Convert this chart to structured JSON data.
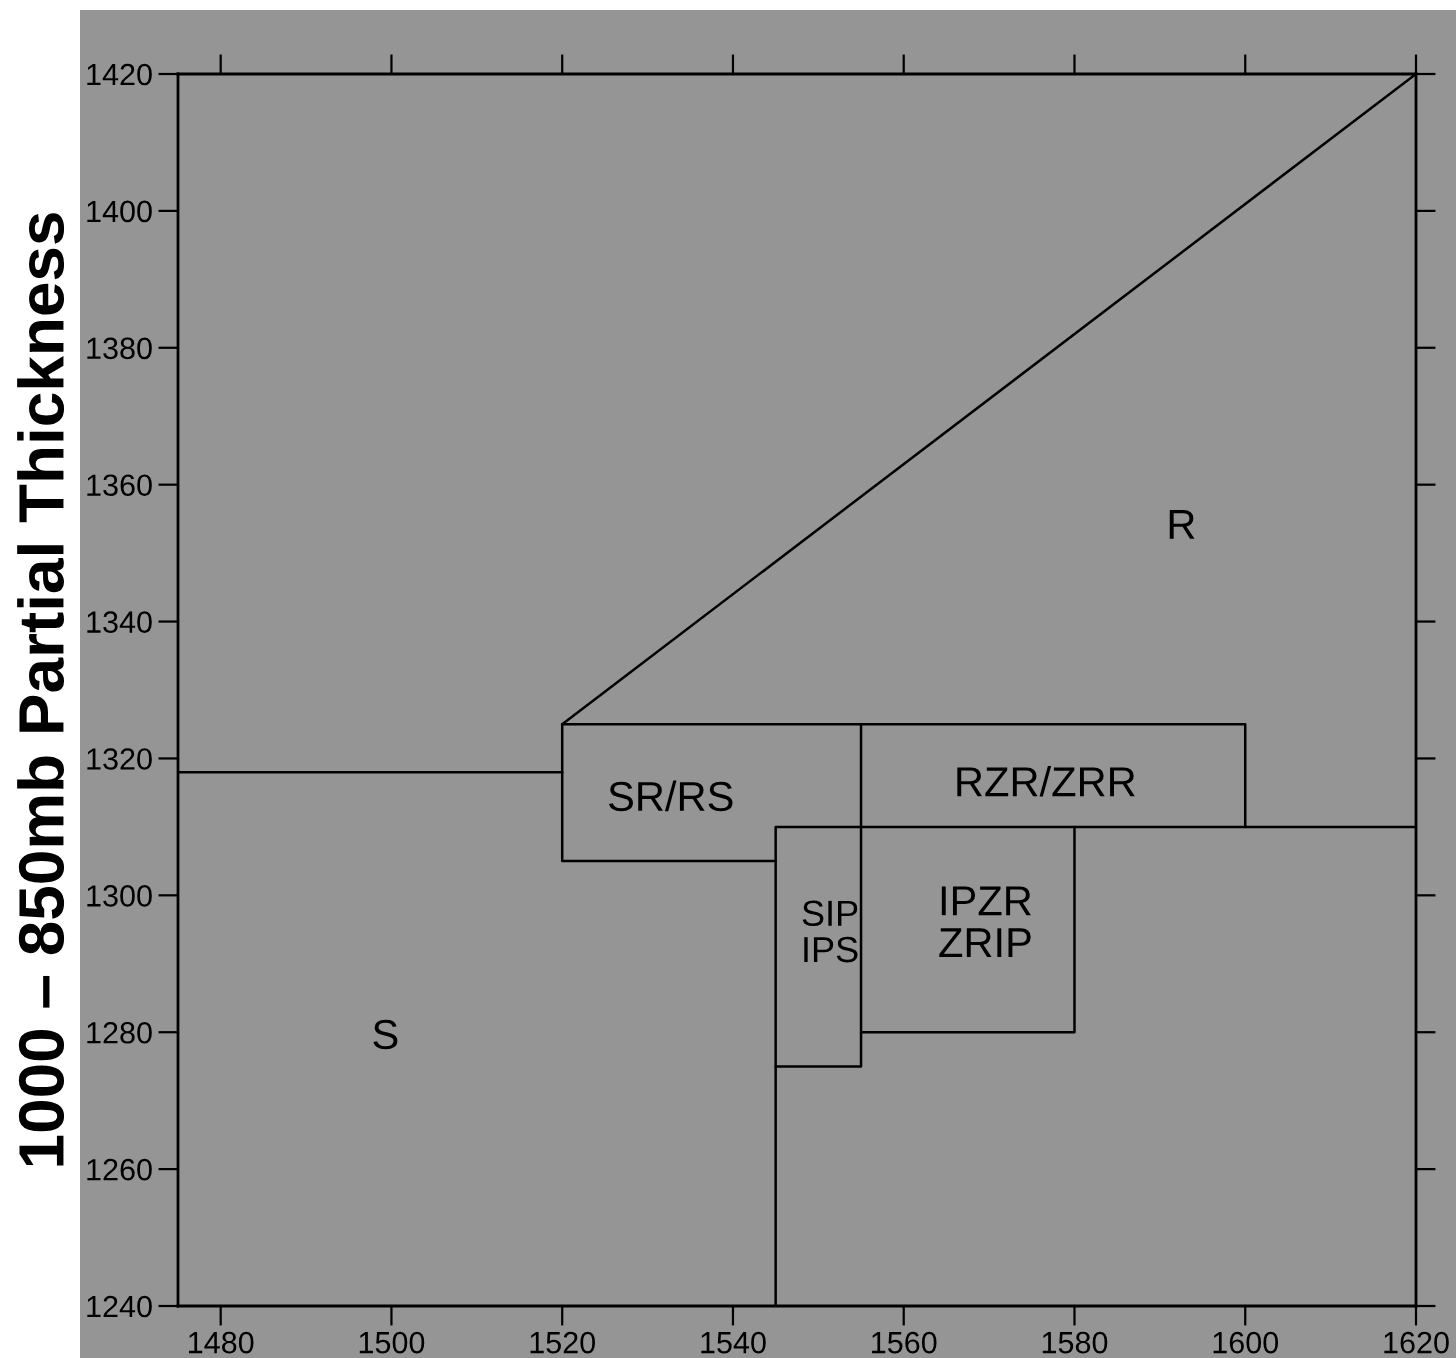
{
  "chart_data": {
    "type": "line",
    "ylabel": "1000 – 850mb Partial Thickness",
    "series": [
      {
        "color": "#000000",
        "x": [
          1475,
          1520
        ],
        "values": [
          1318,
          1318
        ]
      },
      {
        "color": "#000000",
        "x": [
          1620,
          1520,
          1600,
          1600
        ],
        "values": [
          1420,
          1325,
          1325,
          1310
        ]
      },
      {
        "color": "#000000",
        "x": [
          1520,
          1520,
          1545
        ],
        "values": [
          1325,
          1305,
          1305
        ]
      },
      {
        "color": "#000000",
        "x": [
          1545,
          1545,
          1620
        ],
        "values": [
          1240,
          1310,
          1310
        ]
      },
      {
        "color": "#000000",
        "x": [
          1555,
          1555,
          1545
        ],
        "values": [
          1325,
          1275,
          1275
        ]
      },
      {
        "color": "#000000",
        "x": [
          1555,
          1580,
          1580
        ],
        "values": [
          1280,
          1280,
          1310
        ]
      }
    ],
    "annotations": [
      "S",
      "R",
      "SR/RS",
      "RZR/ZRR",
      "SIP\nIPS",
      "IPZR\nZRIP"
    ],
    "xlim": [
      1475,
      1620
    ],
    "xticks": [
      1480,
      1500,
      1520,
      1540,
      1560,
      1580,
      1600,
      1620
    ],
    "ylim": [
      1240,
      1420
    ],
    "yticks": [
      1240,
      1260,
      1280,
      1300,
      1320,
      1340,
      1360,
      1380,
      1400,
      1420
    ],
    "grid": false
  }
}
